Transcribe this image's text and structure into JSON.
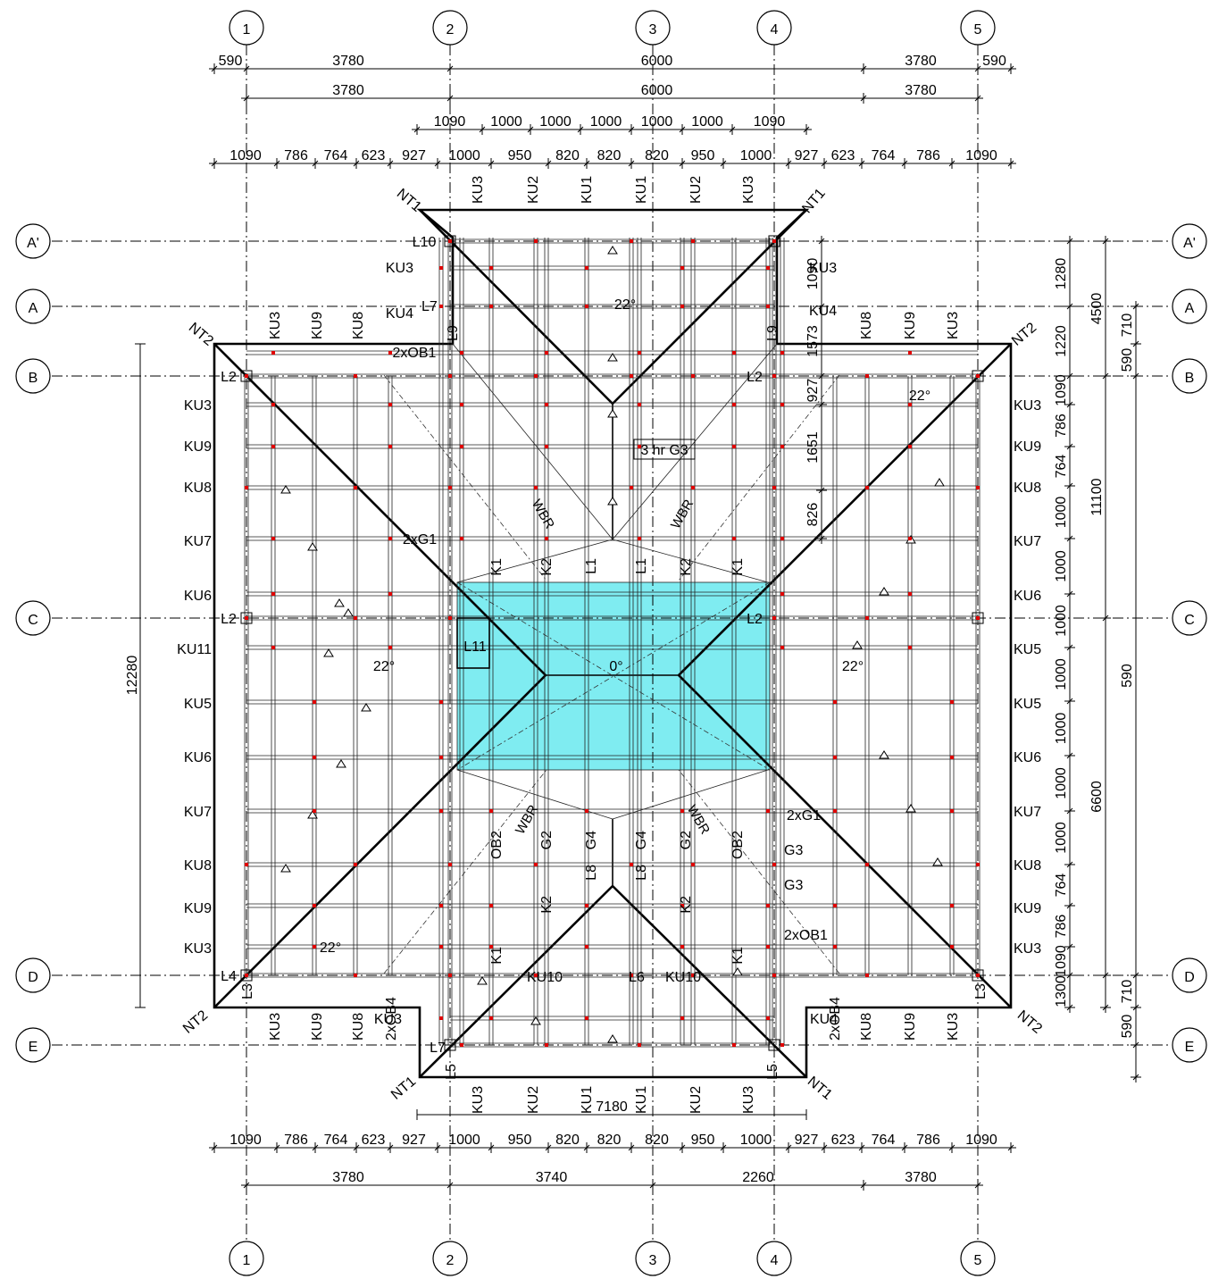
{
  "colors": {
    "accent_fill": "#7fecf1",
    "member_marks": "#e00000"
  },
  "grid_columns": [
    "1",
    "2",
    "3",
    "4",
    "5"
  ],
  "grid_rows": [
    "A'",
    "A",
    "B",
    "C",
    "D",
    "E"
  ],
  "dims_top": {
    "row1": [
      "590",
      "3780",
      "6000",
      "3780",
      "590"
    ],
    "row2": [
      "3780",
      "6000",
      "3780"
    ],
    "row3": [
      "1090",
      "1000",
      "1000",
      "1000",
      "1000",
      "1000",
      "1090"
    ],
    "row4": [
      "1090",
      "786",
      "764",
      "623",
      "927",
      "1000",
      "950",
      "820",
      "820",
      "820",
      "950",
      "1000",
      "927",
      "623",
      "764",
      "786",
      "1090"
    ]
  },
  "dims_bottom": {
    "overall": "7180",
    "row1": [
      "1090",
      "786",
      "764",
      "623",
      "927",
      "1000",
      "950",
      "820",
      "820",
      "820",
      "950",
      "1000",
      "927",
      "623",
      "764",
      "786",
      "1090"
    ],
    "row2": [
      "3780",
      "3740",
      "2260",
      "3780"
    ]
  },
  "dims_left": {
    "overall": "12280"
  },
  "dims_right": {
    "inner": [
      "1090",
      "1573",
      "927",
      "1651",
      "826"
    ],
    "col1": [
      "1280",
      "1220",
      "1090",
      "786",
      "764",
      "1000",
      "1000",
      "1000",
      "1000",
      "1000",
      "1000",
      "1000",
      "764",
      "786",
      "1090",
      "1300"
    ],
    "col2": [
      "4500",
      "11100",
      "6600"
    ],
    "col3": [
      "710",
      "590",
      "590",
      "710",
      "590"
    ]
  },
  "labels": {
    "truss_top": [
      "KU3",
      "KU2",
      "KU1",
      "KU1",
      "KU2",
      "KU3"
    ],
    "truss_bottom": [
      "KU3",
      "KU2",
      "KU1",
      "KU1",
      "KU2",
      "KU3"
    ],
    "wing_top_left": [
      "KU3",
      "KU9",
      "KU8"
    ],
    "wing_top_right": [
      "KU8",
      "KU9",
      "KU3"
    ],
    "wing_bottom_left": [
      "KU3",
      "KU9",
      "KU8",
      "2xOB4"
    ],
    "wing_bottom_right": [
      "2xOB4",
      "KU8",
      "KU9",
      "KU3"
    ],
    "left_side": [
      "KU3",
      "KU9",
      "KU8",
      "KU7",
      "KU6",
      "KU11",
      "KU5",
      "KU6",
      "KU7",
      "KU8",
      "KU9",
      "KU3"
    ],
    "right_side": [
      "KU3",
      "KU9",
      "KU8",
      "KU7",
      "KU6",
      "KU5",
      "KU5",
      "KU6",
      "KU7",
      "KU8",
      "KU9",
      "KU3"
    ],
    "nt1": "NT1",
    "nt2": "NT2",
    "l10": "L10",
    "l7": "L7",
    "l9": "L9",
    "l2": "L2",
    "l3": "L3",
    "l4": "L4",
    "l5": "L5",
    "l6": "L6",
    "l11": "L11",
    "ku3": "KU3",
    "ku4": "KU4",
    "ku10": "KU10",
    "ob1": "2xOB1",
    "g1": "2xG1",
    "g1r": "2xG1",
    "g3": "G3",
    "g3box": "3 hr  G3",
    "k1": "K1",
    "k2": "K2",
    "l1": "L1",
    "l8": "L8",
    "g2": "G2",
    "g4": "G4",
    "ob2": "OB2",
    "wbr": "WBR",
    "pitch22": "22°",
    "pitch0": "0°"
  }
}
